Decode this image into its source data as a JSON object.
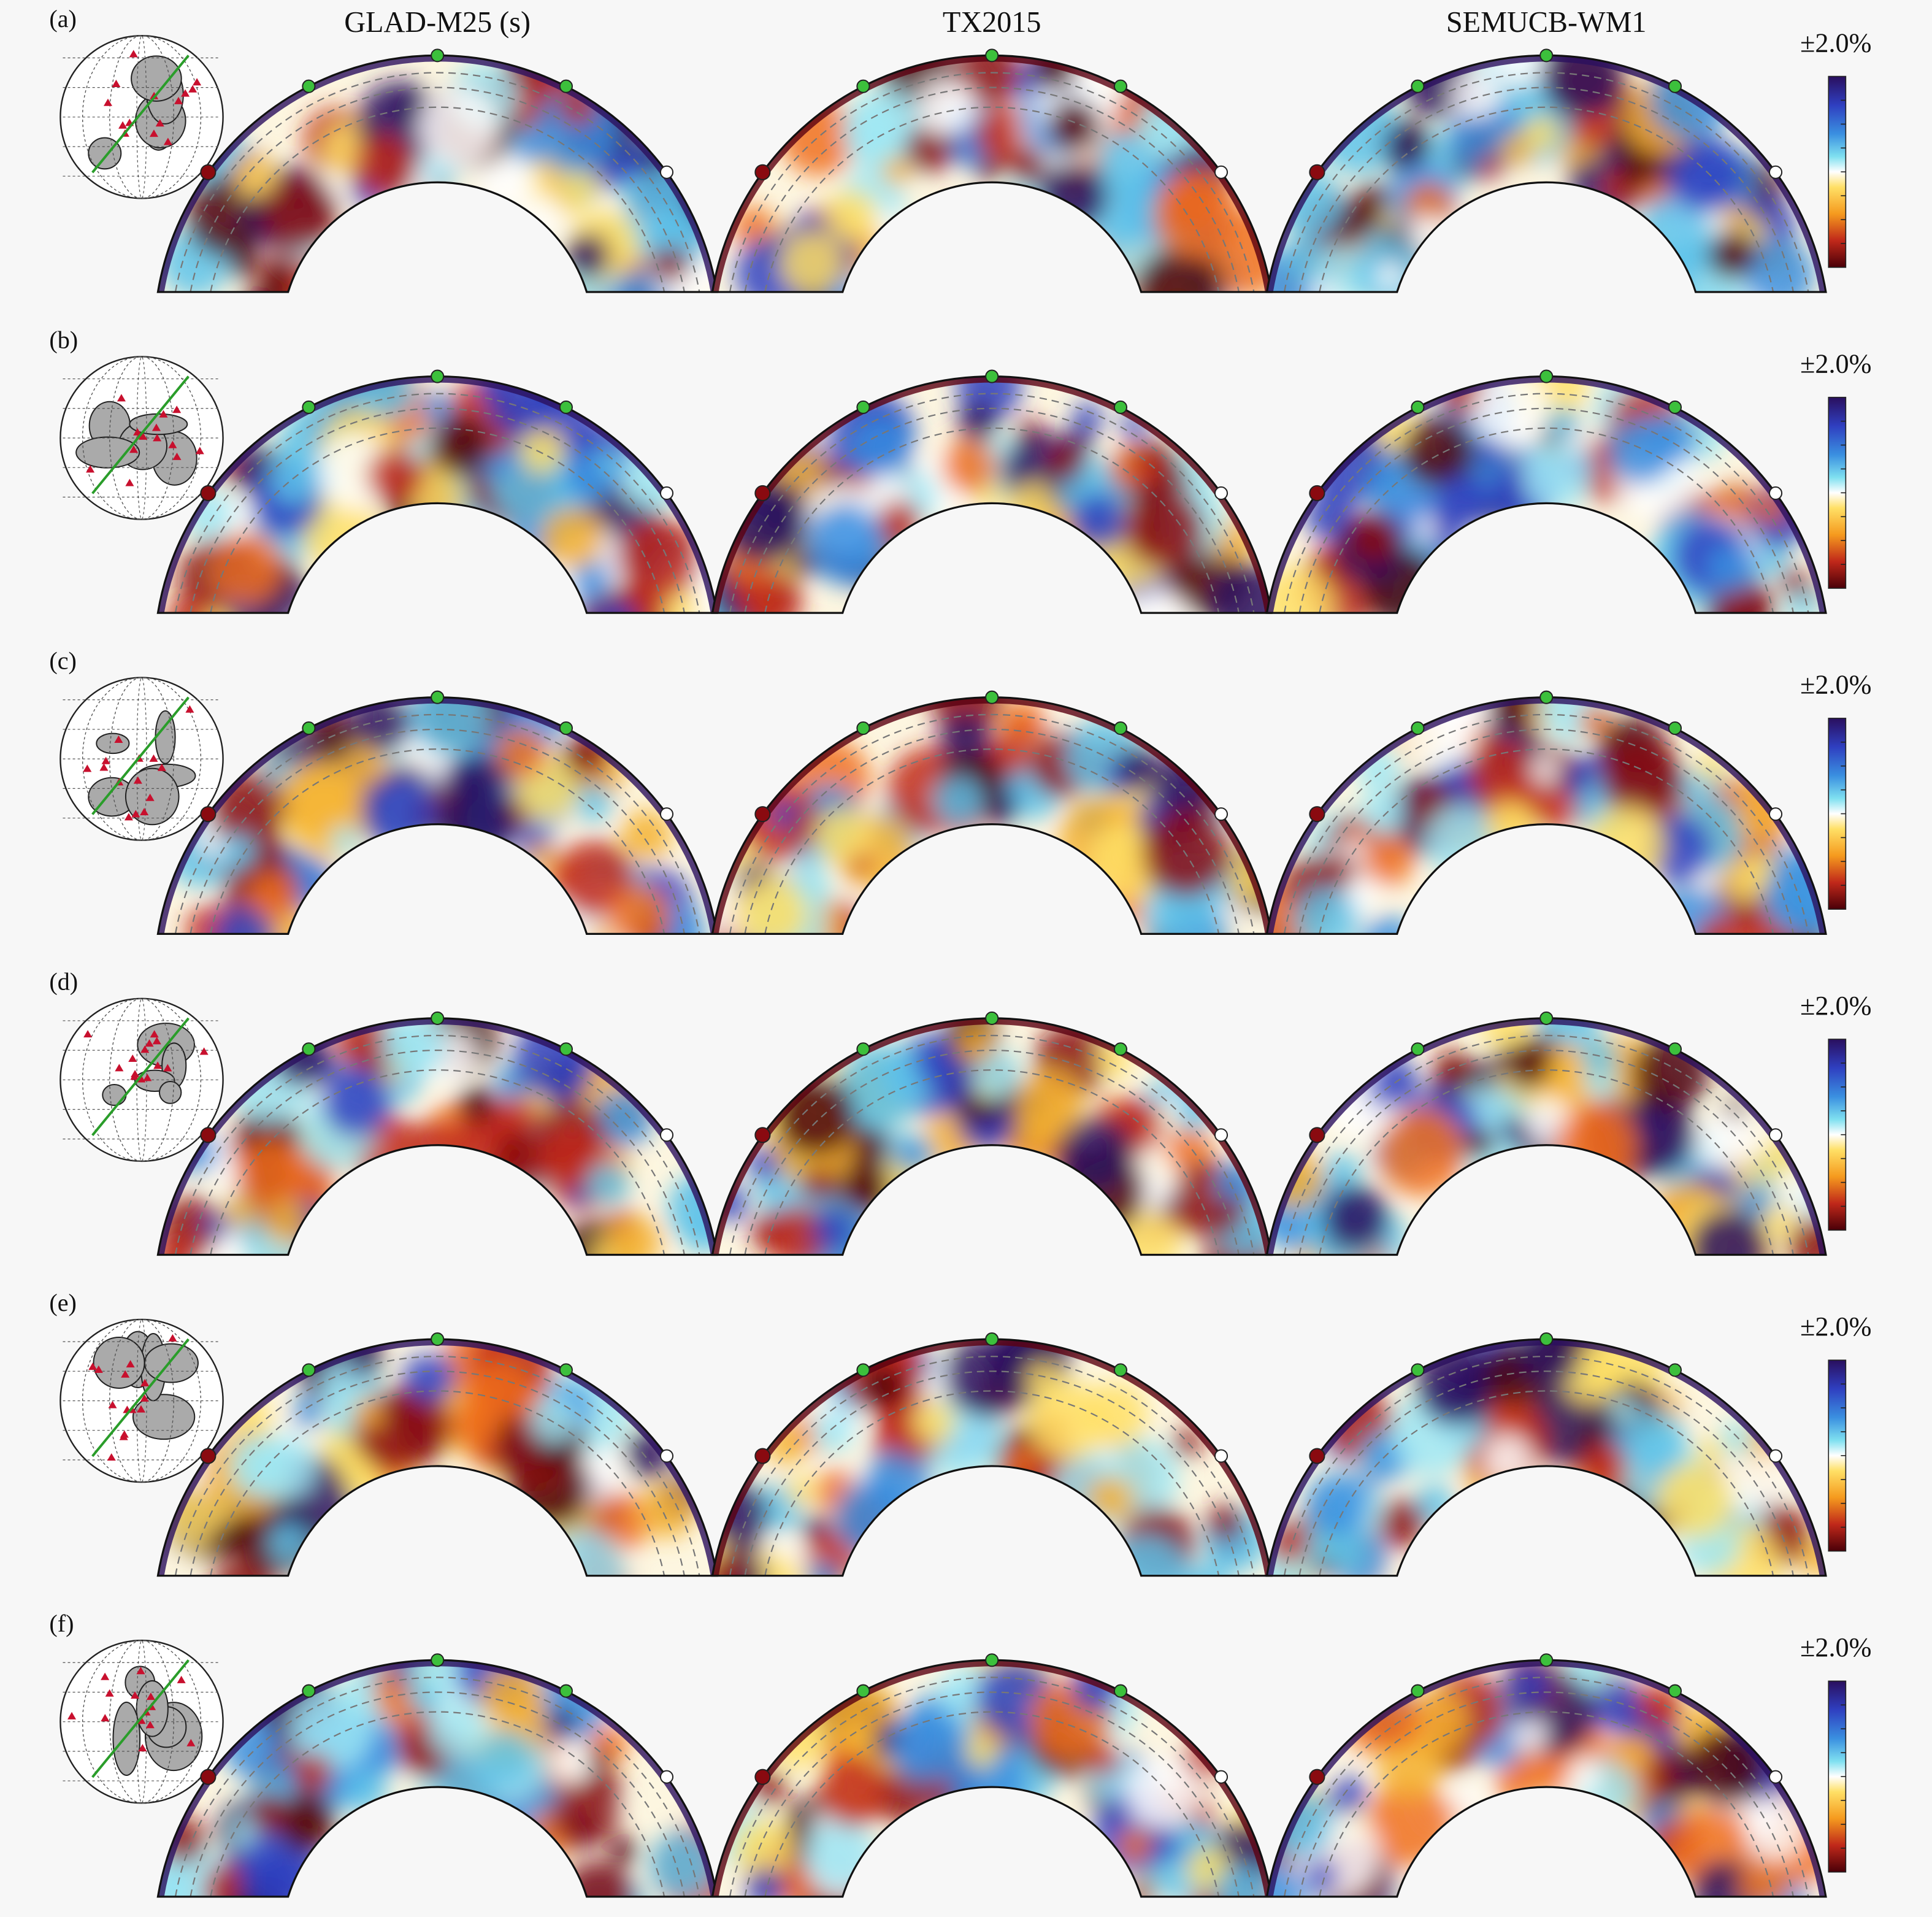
{
  "columns": [
    "GLAD-M25 (s)",
    "TX2015",
    "SEMUCB-WM1"
  ],
  "rows": [
    {
      "label": "(a)",
      "scale": "±2.0%"
    },
    {
      "label": "(b)",
      "scale": "±2.0%"
    },
    {
      "label": "(c)",
      "scale": "±2.0%"
    },
    {
      "label": "(d)",
      "scale": "±2.0%"
    },
    {
      "label": "(e)",
      "scale": "±2.0%"
    },
    {
      "label": "(f)",
      "scale": "±2.0%"
    }
  ]
}
